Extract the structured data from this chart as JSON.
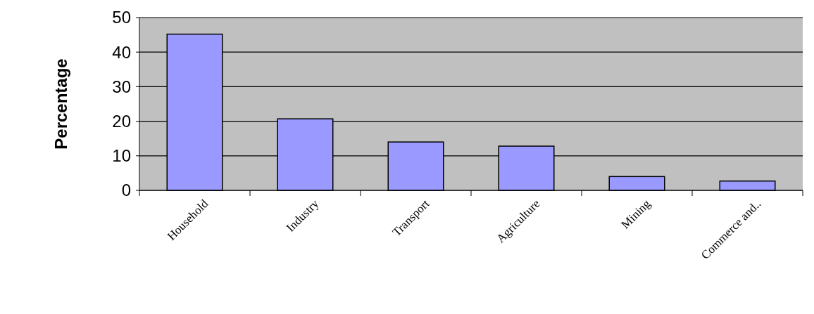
{
  "chart_data": {
    "type": "bar",
    "ylabel": "Percentage",
    "categories": [
      "Household",
      "Industry",
      "Transport",
      "Agriculture",
      "Mining",
      "Commerce and.."
    ],
    "values": [
      45.2,
      20.7,
      14.0,
      12.8,
      4.0,
      2.7
    ],
    "color": "#9999ff",
    "ylim": [
      0,
      50
    ],
    "yticks": [
      0,
      10,
      20,
      30,
      40,
      50
    ],
    "grid": "y"
  }
}
